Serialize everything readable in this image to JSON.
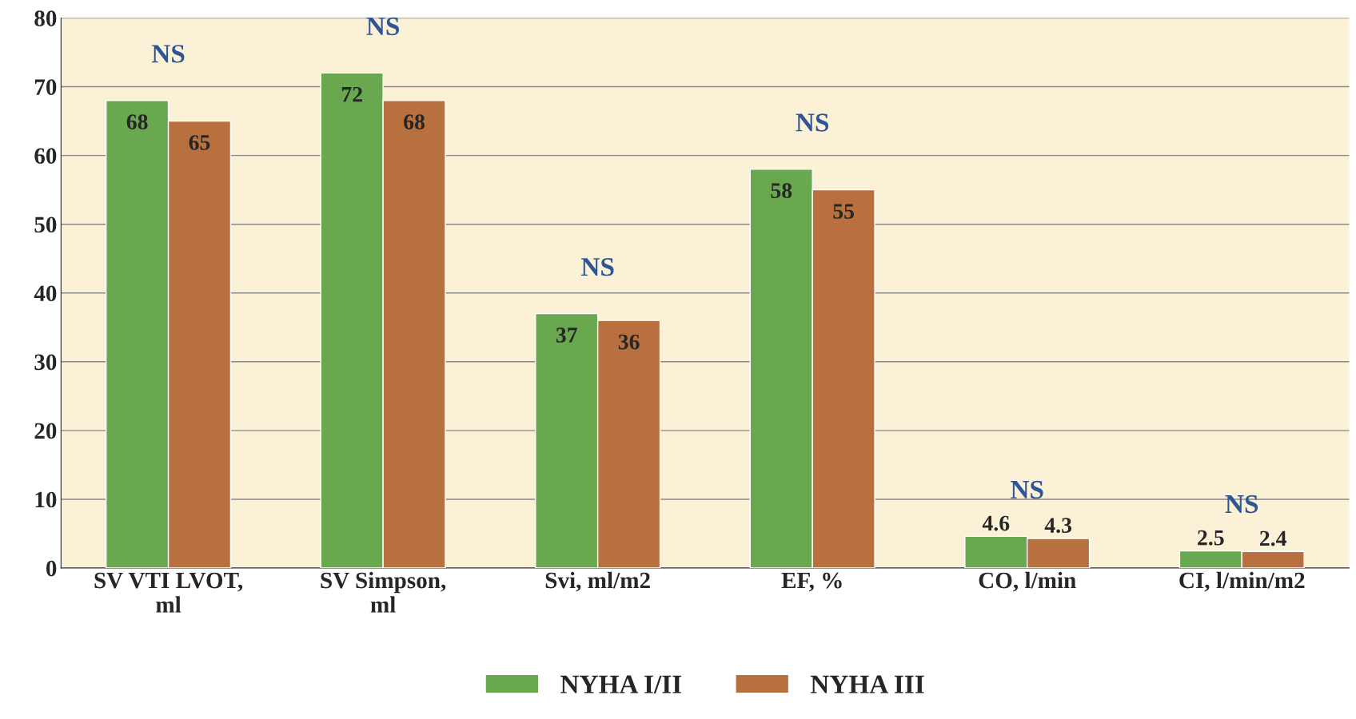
{
  "chart_data": {
    "type": "bar",
    "categories": [
      "SV VTI LVOT,\nml",
      "SV Simpson,\nml",
      "Svi, ml/m2",
      "EF, %",
      "CO, l/min",
      "CI, l/min/m2"
    ],
    "series": [
      {
        "name": "NYHA I/II",
        "color": "#6aa84f",
        "values": [
          68,
          72,
          37,
          58,
          4.6,
          2.5
        ]
      },
      {
        "name": "NYHA III",
        "color": "#b8703f",
        "values": [
          65,
          68,
          36,
          55,
          4.3,
          2.4
        ]
      }
    ],
    "ylim": [
      0,
      80
    ],
    "yticks": [
      0,
      10,
      20,
      30,
      40,
      50,
      60,
      70,
      80
    ],
    "grid": "y",
    "legend": "bottom",
    "data_labels": true,
    "annotations": [
      "NS",
      "NS",
      "NS",
      "NS",
      "NS",
      "NS"
    ]
  }
}
